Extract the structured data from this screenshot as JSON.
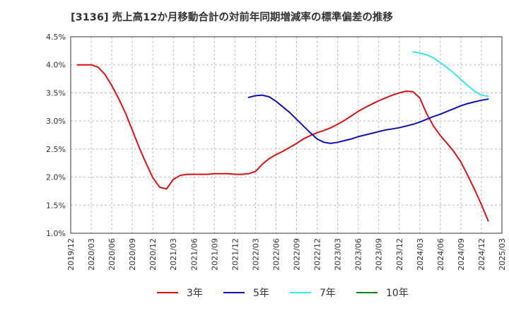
{
  "chart_data": {
    "type": "line",
    "title": "[3136]  売上高12か月移動合計の対前年同期増減率の標準偏差の推移",
    "xlabel": "",
    "ylabel": "",
    "ylim": [
      1.0,
      4.5
    ],
    "y_ticks": [
      "4.5%",
      "4.0%",
      "3.5%",
      "3.0%",
      "2.5%",
      "2.0%",
      "1.5%",
      "1.0%"
    ],
    "y_tick_values": [
      4.5,
      4.0,
      3.5,
      3.0,
      2.5,
      2.0,
      1.5,
      1.0
    ],
    "x_range": [
      "2019/12",
      "2025/03"
    ],
    "x_ticks": [
      "2019/12",
      "2020/03",
      "2020/06",
      "2020/09",
      "2020/12",
      "2021/03",
      "2021/06",
      "2021/09",
      "2021/12",
      "2022/03",
      "2022/06",
      "2022/09",
      "2022/12",
      "2023/03",
      "2023/06",
      "2023/09",
      "2023/12",
      "2024/03",
      "2024/06",
      "2024/09",
      "2024/12",
      "2025/03"
    ],
    "grid": true,
    "legend_position": "bottom",
    "series": [
      {
        "name": "3年",
        "color": "#dd1111",
        "points": [
          [
            "2020/01",
            4.0
          ],
          [
            "2020/02",
            4.0
          ],
          [
            "2020/03",
            4.0
          ],
          [
            "2020/04",
            3.96
          ],
          [
            "2020/05",
            3.83
          ],
          [
            "2020/06",
            3.63
          ],
          [
            "2020/07",
            3.4
          ],
          [
            "2020/08",
            3.14
          ],
          [
            "2020/09",
            2.84
          ],
          [
            "2020/10",
            2.53
          ],
          [
            "2020/11",
            2.25
          ],
          [
            "2020/12",
            1.99
          ],
          [
            "2021/01",
            1.82
          ],
          [
            "2021/02",
            1.79
          ],
          [
            "2021/03",
            1.96
          ],
          [
            "2021/04",
            2.03
          ],
          [
            "2021/05",
            2.05
          ],
          [
            "2021/06",
            2.05
          ],
          [
            "2021/07",
            2.05
          ],
          [
            "2021/08",
            2.05
          ],
          [
            "2021/09",
            2.06
          ],
          [
            "2021/10",
            2.06
          ],
          [
            "2021/11",
            2.06
          ],
          [
            "2021/12",
            2.05
          ],
          [
            "2022/01",
            2.05
          ],
          [
            "2022/02",
            2.06
          ],
          [
            "2022/03",
            2.1
          ],
          [
            "2022/04",
            2.23
          ],
          [
            "2022/05",
            2.33
          ],
          [
            "2022/06",
            2.4
          ],
          [
            "2022/07",
            2.46
          ],
          [
            "2022/08",
            2.53
          ],
          [
            "2022/09",
            2.6
          ],
          [
            "2022/10",
            2.68
          ],
          [
            "2022/11",
            2.74
          ],
          [
            "2022/12",
            2.79
          ],
          [
            "2023/01",
            2.83
          ],
          [
            "2023/02",
            2.88
          ],
          [
            "2023/03",
            2.94
          ],
          [
            "2023/04",
            3.01
          ],
          [
            "2023/05",
            3.09
          ],
          [
            "2023/06",
            3.17
          ],
          [
            "2023/07",
            3.24
          ],
          [
            "2023/08",
            3.3
          ],
          [
            "2023/09",
            3.36
          ],
          [
            "2023/10",
            3.41
          ],
          [
            "2023/11",
            3.46
          ],
          [
            "2023/12",
            3.5
          ],
          [
            "2024/01",
            3.53
          ],
          [
            "2024/02",
            3.52
          ],
          [
            "2024/03",
            3.41
          ],
          [
            "2024/04",
            3.13
          ],
          [
            "2024/05",
            2.91
          ],
          [
            "2024/06",
            2.74
          ],
          [
            "2024/07",
            2.6
          ],
          [
            "2024/08",
            2.45
          ],
          [
            "2024/09",
            2.27
          ],
          [
            "2024/10",
            2.03
          ],
          [
            "2024/11",
            1.78
          ],
          [
            "2024/12",
            1.51
          ],
          [
            "2025/01",
            1.22
          ]
        ]
      },
      {
        "name": "5年",
        "color": "#1111bb",
        "points": [
          [
            "2022/02",
            3.42
          ],
          [
            "2022/03",
            3.45
          ],
          [
            "2022/04",
            3.46
          ],
          [
            "2022/05",
            3.43
          ],
          [
            "2022/06",
            3.35
          ],
          [
            "2022/07",
            3.25
          ],
          [
            "2022/08",
            3.15
          ],
          [
            "2022/09",
            3.03
          ],
          [
            "2022/10",
            2.91
          ],
          [
            "2022/11",
            2.79
          ],
          [
            "2022/12",
            2.68
          ],
          [
            "2023/01",
            2.62
          ],
          [
            "2023/02",
            2.6
          ],
          [
            "2023/03",
            2.62
          ],
          [
            "2023/04",
            2.65
          ],
          [
            "2023/05",
            2.68
          ],
          [
            "2023/06",
            2.72
          ],
          [
            "2023/07",
            2.75
          ],
          [
            "2023/08",
            2.78
          ],
          [
            "2023/09",
            2.81
          ],
          [
            "2023/10",
            2.84
          ],
          [
            "2023/11",
            2.86
          ],
          [
            "2023/12",
            2.88
          ],
          [
            "2024/01",
            2.91
          ],
          [
            "2024/02",
            2.94
          ],
          [
            "2024/03",
            2.98
          ],
          [
            "2024/04",
            3.03
          ],
          [
            "2024/05",
            3.08
          ],
          [
            "2024/06",
            3.12
          ],
          [
            "2024/07",
            3.17
          ],
          [
            "2024/08",
            3.22
          ],
          [
            "2024/09",
            3.27
          ],
          [
            "2024/10",
            3.31
          ],
          [
            "2024/11",
            3.34
          ],
          [
            "2024/12",
            3.37
          ],
          [
            "2025/01",
            3.39
          ]
        ]
      },
      {
        "name": "7年",
        "color": "#33e8f0",
        "points": [
          [
            "2024/02",
            4.23
          ],
          [
            "2024/03",
            4.21
          ],
          [
            "2024/04",
            4.18
          ],
          [
            "2024/05",
            4.12
          ],
          [
            "2024/06",
            4.04
          ],
          [
            "2024/07",
            3.95
          ],
          [
            "2024/08",
            3.85
          ],
          [
            "2024/09",
            3.74
          ],
          [
            "2024/10",
            3.63
          ],
          [
            "2024/11",
            3.53
          ],
          [
            "2024/12",
            3.46
          ],
          [
            "2025/01",
            3.44
          ]
        ]
      },
      {
        "name": "10年",
        "color": "#118811",
        "points": []
      }
    ]
  }
}
